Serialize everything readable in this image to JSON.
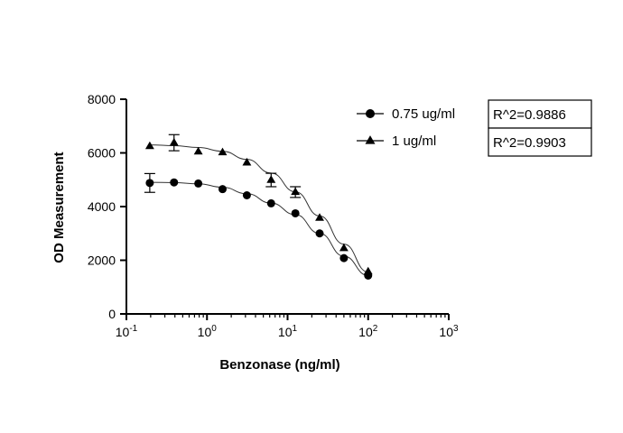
{
  "chart_data": {
    "type": "scatter",
    "xlabel": "Benzonase (ng/ml)",
    "ylabel": "OD Measurement",
    "xscale": "log",
    "xlim": [
      0.1,
      1000
    ],
    "ylim": [
      0,
      8000
    ],
    "x_ticks": [
      {
        "base": "10",
        "exp": "-1"
      },
      {
        "base": "10",
        "exp": "0"
      },
      {
        "base": "10",
        "exp": "1"
      },
      {
        "base": "10",
        "exp": "2"
      },
      {
        "base": "10",
        "exp": "3"
      }
    ],
    "y_ticks": [
      "0",
      "2000",
      "4000",
      "6000",
      "8000"
    ],
    "grid": false,
    "legend_position": "top-right",
    "series": [
      {
        "name": "0.75 ug/ml",
        "marker": "circle",
        "r_squared_label": "R^2=0.9886",
        "x": [
          0.195,
          0.39,
          0.78,
          1.56,
          3.125,
          6.25,
          12.5,
          25,
          50,
          100
        ],
        "y": [
          4880,
          4900,
          4860,
          4650,
          4420,
          4120,
          3750,
          3000,
          2080,
          1430
        ],
        "error": [
          350,
          0,
          0,
          0,
          0,
          0,
          0,
          0,
          0,
          0
        ],
        "fit_y": [
          4905,
          4890,
          4850,
          4720,
          4480,
          4130,
          3700,
          3000,
          2150,
          1430
        ]
      },
      {
        "name": "1 ug/ml",
        "marker": "triangle",
        "r_squared_label": "R^2=0.9903",
        "x": [
          0.195,
          0.39,
          0.78,
          1.56,
          3.125,
          6.25,
          12.5,
          25,
          50,
          100
        ],
        "y": [
          6250,
          6380,
          6050,
          6020,
          5640,
          4990,
          4540,
          3580,
          2450,
          1580
        ],
        "error": [
          0,
          300,
          0,
          0,
          0,
          250,
          200,
          0,
          0,
          0
        ],
        "fit_y": [
          6300,
          6270,
          6200,
          6060,
          5760,
          5250,
          4550,
          3650,
          2600,
          1560
        ]
      }
    ]
  }
}
